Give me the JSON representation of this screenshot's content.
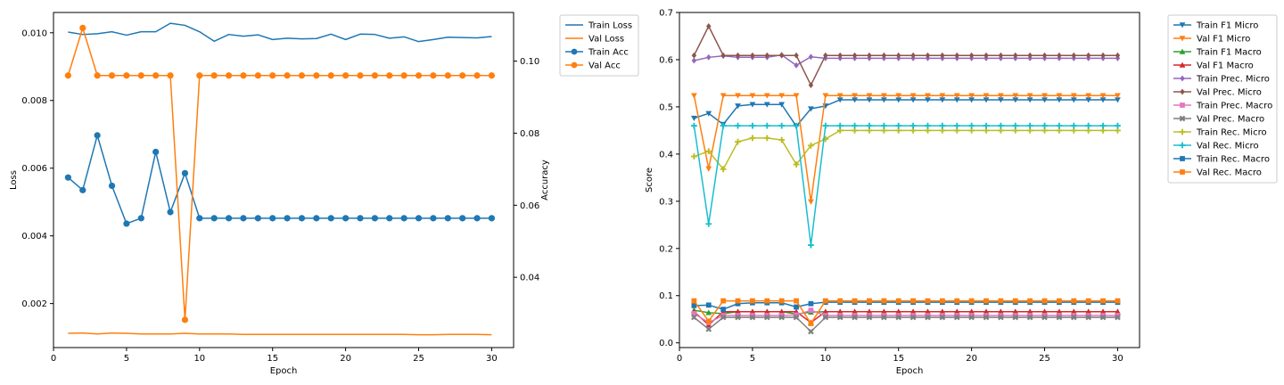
{
  "chart_data": [
    {
      "type": "line",
      "xlabel": "Epoch",
      "ylabel": "Loss",
      "y2label": "Accuracy",
      "xlim": [
        0,
        31.5
      ],
      "ylim": [
        0.0007,
        0.0106
      ],
      "y2lim": [
        0.0205,
        0.1135
      ],
      "xticks": [
        0,
        5,
        10,
        15,
        20,
        25,
        30
      ],
      "yticks": [
        0.002,
        0.004,
        0.006,
        0.008,
        0.01
      ],
      "y2ticks": [
        0.04,
        0.06,
        0.08,
        0.1
      ],
      "legend": "outside-right",
      "grid": false,
      "x": [
        1,
        2,
        3,
        4,
        5,
        6,
        7,
        8,
        9,
        10,
        11,
        12,
        13,
        14,
        15,
        16,
        17,
        18,
        19,
        20,
        21,
        22,
        23,
        24,
        25,
        26,
        27,
        28,
        29,
        30
      ],
      "series": [
        {
          "name": "Train Loss",
          "axis": "left",
          "color": "#1f77b4",
          "marker": "none",
          "values": [
            0.01002,
            0.00995,
            0.00997,
            0.01003,
            0.00993,
            0.01003,
            0.01003,
            0.01028,
            0.01022,
            0.01003,
            0.00975,
            0.00995,
            0.0099,
            0.00994,
            0.0098,
            0.00984,
            0.00982,
            0.00983,
            0.00996,
            0.0098,
            0.00996,
            0.00995,
            0.00984,
            0.00988,
            0.00974,
            0.0098,
            0.00987,
            0.00986,
            0.00985,
            0.00989
          ]
        },
        {
          "name": "Val Loss",
          "axis": "left",
          "color": "#ff7f0e",
          "marker": "none",
          "values": [
            0.00112,
            0.00113,
            0.0011,
            0.00113,
            0.00112,
            0.0011,
            0.0011,
            0.0011,
            0.00112,
            0.0011,
            0.0011,
            0.0011,
            0.00109,
            0.00109,
            0.00109,
            0.00109,
            0.00109,
            0.00109,
            0.00109,
            0.00109,
            0.00109,
            0.00109,
            0.00109,
            0.00109,
            0.00108,
            0.00108,
            0.00109,
            0.00109,
            0.00109,
            0.00108
          ]
        },
        {
          "name": "Train Acc",
          "axis": "right",
          "color": "#1f77b4",
          "marker": "circle",
          "values": [
            0.0677,
            0.0642,
            0.0794,
            0.0654,
            0.0549,
            0.0564,
            0.0748,
            0.0581,
            0.0689,
            0.0564,
            0.0564,
            0.0564,
            0.0564,
            0.0564,
            0.0564,
            0.0564,
            0.0564,
            0.0564,
            0.0564,
            0.0564,
            0.0564,
            0.0564,
            0.0564,
            0.0564,
            0.0564,
            0.0564,
            0.0564,
            0.0564,
            0.0564,
            0.0564
          ]
        },
        {
          "name": "Val Acc",
          "axis": "right",
          "color": "#ff7f0e",
          "marker": "circle",
          "values": [
            0.096,
            0.1092,
            0.096,
            0.096,
            0.096,
            0.096,
            0.096,
            0.096,
            0.0282,
            0.096,
            0.096,
            0.096,
            0.096,
            0.096,
            0.096,
            0.096,
            0.096,
            0.096,
            0.096,
            0.096,
            0.096,
            0.096,
            0.096,
            0.096,
            0.096,
            0.096,
            0.096,
            0.096,
            0.096,
            0.096
          ]
        }
      ]
    },
    {
      "type": "line",
      "xlabel": "Epoch",
      "ylabel": "Score",
      "xlim": [
        0,
        31.5
      ],
      "ylim": [
        -0.01,
        0.7
      ],
      "xticks": [
        0,
        5,
        10,
        15,
        20,
        25,
        30
      ],
      "yticks": [
        0.0,
        0.1,
        0.2,
        0.3,
        0.4,
        0.5,
        0.6,
        0.7
      ],
      "legend": "outside-right",
      "grid": false,
      "x": [
        1,
        2,
        3,
        4,
        5,
        6,
        7,
        8,
        9,
        10,
        11,
        12,
        13,
        14,
        15,
        16,
        17,
        18,
        19,
        20,
        21,
        22,
        23,
        24,
        25,
        26,
        27,
        28,
        29,
        30
      ],
      "series": [
        {
          "name": "Train F1 Micro",
          "color": "#1f77b4",
          "marker": "triangle-down",
          "values": [
            0.476,
            0.486,
            0.463,
            0.502,
            0.505,
            0.505,
            0.505,
            0.459,
            0.496,
            0.502,
            0.515,
            0.515,
            0.515,
            0.515,
            0.515,
            0.515,
            0.515,
            0.515,
            0.515,
            0.515,
            0.515,
            0.515,
            0.515,
            0.515,
            0.515,
            0.515,
            0.515,
            0.515,
            0.515,
            0.515
          ]
        },
        {
          "name": "Val F1 Micro",
          "color": "#ff7f0e",
          "marker": "triangle-down",
          "values": [
            0.524,
            0.369,
            0.524,
            0.524,
            0.524,
            0.524,
            0.524,
            0.524,
            0.299,
            0.524,
            0.524,
            0.524,
            0.524,
            0.524,
            0.524,
            0.524,
            0.524,
            0.524,
            0.524,
            0.524,
            0.524,
            0.524,
            0.524,
            0.524,
            0.524,
            0.524,
            0.524,
            0.524,
            0.524,
            0.524
          ]
        },
        {
          "name": "Train F1 Macro",
          "color": "#2ca02c",
          "marker": "triangle-up",
          "values": [
            0.069,
            0.064,
            0.062,
            0.066,
            0.066,
            0.066,
            0.066,
            0.061,
            0.065,
            0.066,
            0.066,
            0.066,
            0.066,
            0.066,
            0.066,
            0.066,
            0.066,
            0.066,
            0.066,
            0.066,
            0.066,
            0.066,
            0.066,
            0.066,
            0.066,
            0.066,
            0.066,
            0.066,
            0.066,
            0.066
          ]
        },
        {
          "name": "Val F1 Macro",
          "color": "#d62728",
          "marker": "triangle-up",
          "values": [
            0.066,
            0.038,
            0.066,
            0.066,
            0.066,
            0.066,
            0.066,
            0.066,
            0.043,
            0.066,
            0.066,
            0.066,
            0.066,
            0.066,
            0.066,
            0.066,
            0.066,
            0.066,
            0.066,
            0.066,
            0.066,
            0.066,
            0.066,
            0.066,
            0.066,
            0.066,
            0.066,
            0.066,
            0.066,
            0.066
          ]
        },
        {
          "name": "Train Prec. Micro",
          "color": "#9467bd",
          "marker": "diamond",
          "values": [
            0.598,
            0.605,
            0.608,
            0.605,
            0.605,
            0.605,
            0.61,
            0.588,
            0.606,
            0.603,
            0.603,
            0.603,
            0.603,
            0.603,
            0.603,
            0.603,
            0.603,
            0.603,
            0.603,
            0.603,
            0.603,
            0.603,
            0.603,
            0.603,
            0.603,
            0.603,
            0.603,
            0.603,
            0.603,
            0.603
          ]
        },
        {
          "name": "Val Prec. Micro",
          "color": "#8c564b",
          "marker": "diamond",
          "values": [
            0.609,
            0.671,
            0.609,
            0.609,
            0.609,
            0.609,
            0.609,
            0.609,
            0.546,
            0.609,
            0.609,
            0.609,
            0.609,
            0.609,
            0.609,
            0.609,
            0.609,
            0.609,
            0.609,
            0.609,
            0.609,
            0.609,
            0.609,
            0.609,
            0.609,
            0.609,
            0.609,
            0.609,
            0.609,
            0.609
          ]
        },
        {
          "name": "Train Prec. Macro",
          "color": "#e377c2",
          "marker": "square",
          "values": [
            0.062,
            0.043,
            0.058,
            0.058,
            0.058,
            0.058,
            0.058,
            0.059,
            0.069,
            0.058,
            0.058,
            0.058,
            0.058,
            0.058,
            0.058,
            0.058,
            0.058,
            0.058,
            0.058,
            0.058,
            0.058,
            0.058,
            0.058,
            0.058,
            0.058,
            0.058,
            0.058,
            0.058,
            0.058,
            0.058
          ]
        },
        {
          "name": "Val Prec. Macro",
          "color": "#7f7f7f",
          "marker": "x-cross",
          "values": [
            0.054,
            0.029,
            0.054,
            0.054,
            0.054,
            0.054,
            0.054,
            0.054,
            0.024,
            0.054,
            0.054,
            0.054,
            0.054,
            0.054,
            0.054,
            0.054,
            0.054,
            0.054,
            0.054,
            0.054,
            0.054,
            0.054,
            0.054,
            0.054,
            0.054,
            0.054,
            0.054,
            0.054,
            0.054,
            0.054
          ]
        },
        {
          "name": "Train Rec. Micro",
          "color": "#bcbd22",
          "marker": "plus",
          "values": [
            0.395,
            0.406,
            0.368,
            0.426,
            0.434,
            0.434,
            0.43,
            0.378,
            0.418,
            0.432,
            0.45,
            0.45,
            0.45,
            0.45,
            0.45,
            0.45,
            0.45,
            0.45,
            0.45,
            0.45,
            0.45,
            0.45,
            0.45,
            0.45,
            0.45,
            0.45,
            0.45,
            0.45,
            0.45,
            0.45
          ]
        },
        {
          "name": "Val Rec. Micro",
          "color": "#17becf",
          "marker": "plus",
          "values": [
            0.46,
            0.252,
            0.46,
            0.46,
            0.46,
            0.46,
            0.46,
            0.46,
            0.207,
            0.46,
            0.46,
            0.46,
            0.46,
            0.46,
            0.46,
            0.46,
            0.46,
            0.46,
            0.46,
            0.46,
            0.46,
            0.46,
            0.46,
            0.46,
            0.46,
            0.46,
            0.46,
            0.46,
            0.46,
            0.46
          ]
        },
        {
          "name": "Train Rec. Macro",
          "color": "#1f77b4",
          "marker": "square",
          "values": [
            0.079,
            0.08,
            0.071,
            0.083,
            0.085,
            0.085,
            0.085,
            0.076,
            0.083,
            0.086,
            0.086,
            0.086,
            0.086,
            0.086,
            0.086,
            0.086,
            0.086,
            0.086,
            0.086,
            0.086,
            0.086,
            0.086,
            0.086,
            0.086,
            0.086,
            0.086,
            0.086,
            0.086,
            0.086,
            0.086
          ]
        },
        {
          "name": "Val Rec. Macro",
          "color": "#ff7f0e",
          "marker": "square",
          "values": [
            0.089,
            0.046,
            0.089,
            0.089,
            0.089,
            0.089,
            0.089,
            0.089,
            0.041,
            0.089,
            0.089,
            0.089,
            0.089,
            0.089,
            0.089,
            0.089,
            0.089,
            0.089,
            0.089,
            0.089,
            0.089,
            0.089,
            0.089,
            0.089,
            0.089,
            0.089,
            0.089,
            0.089,
            0.089,
            0.089
          ]
        }
      ]
    }
  ]
}
